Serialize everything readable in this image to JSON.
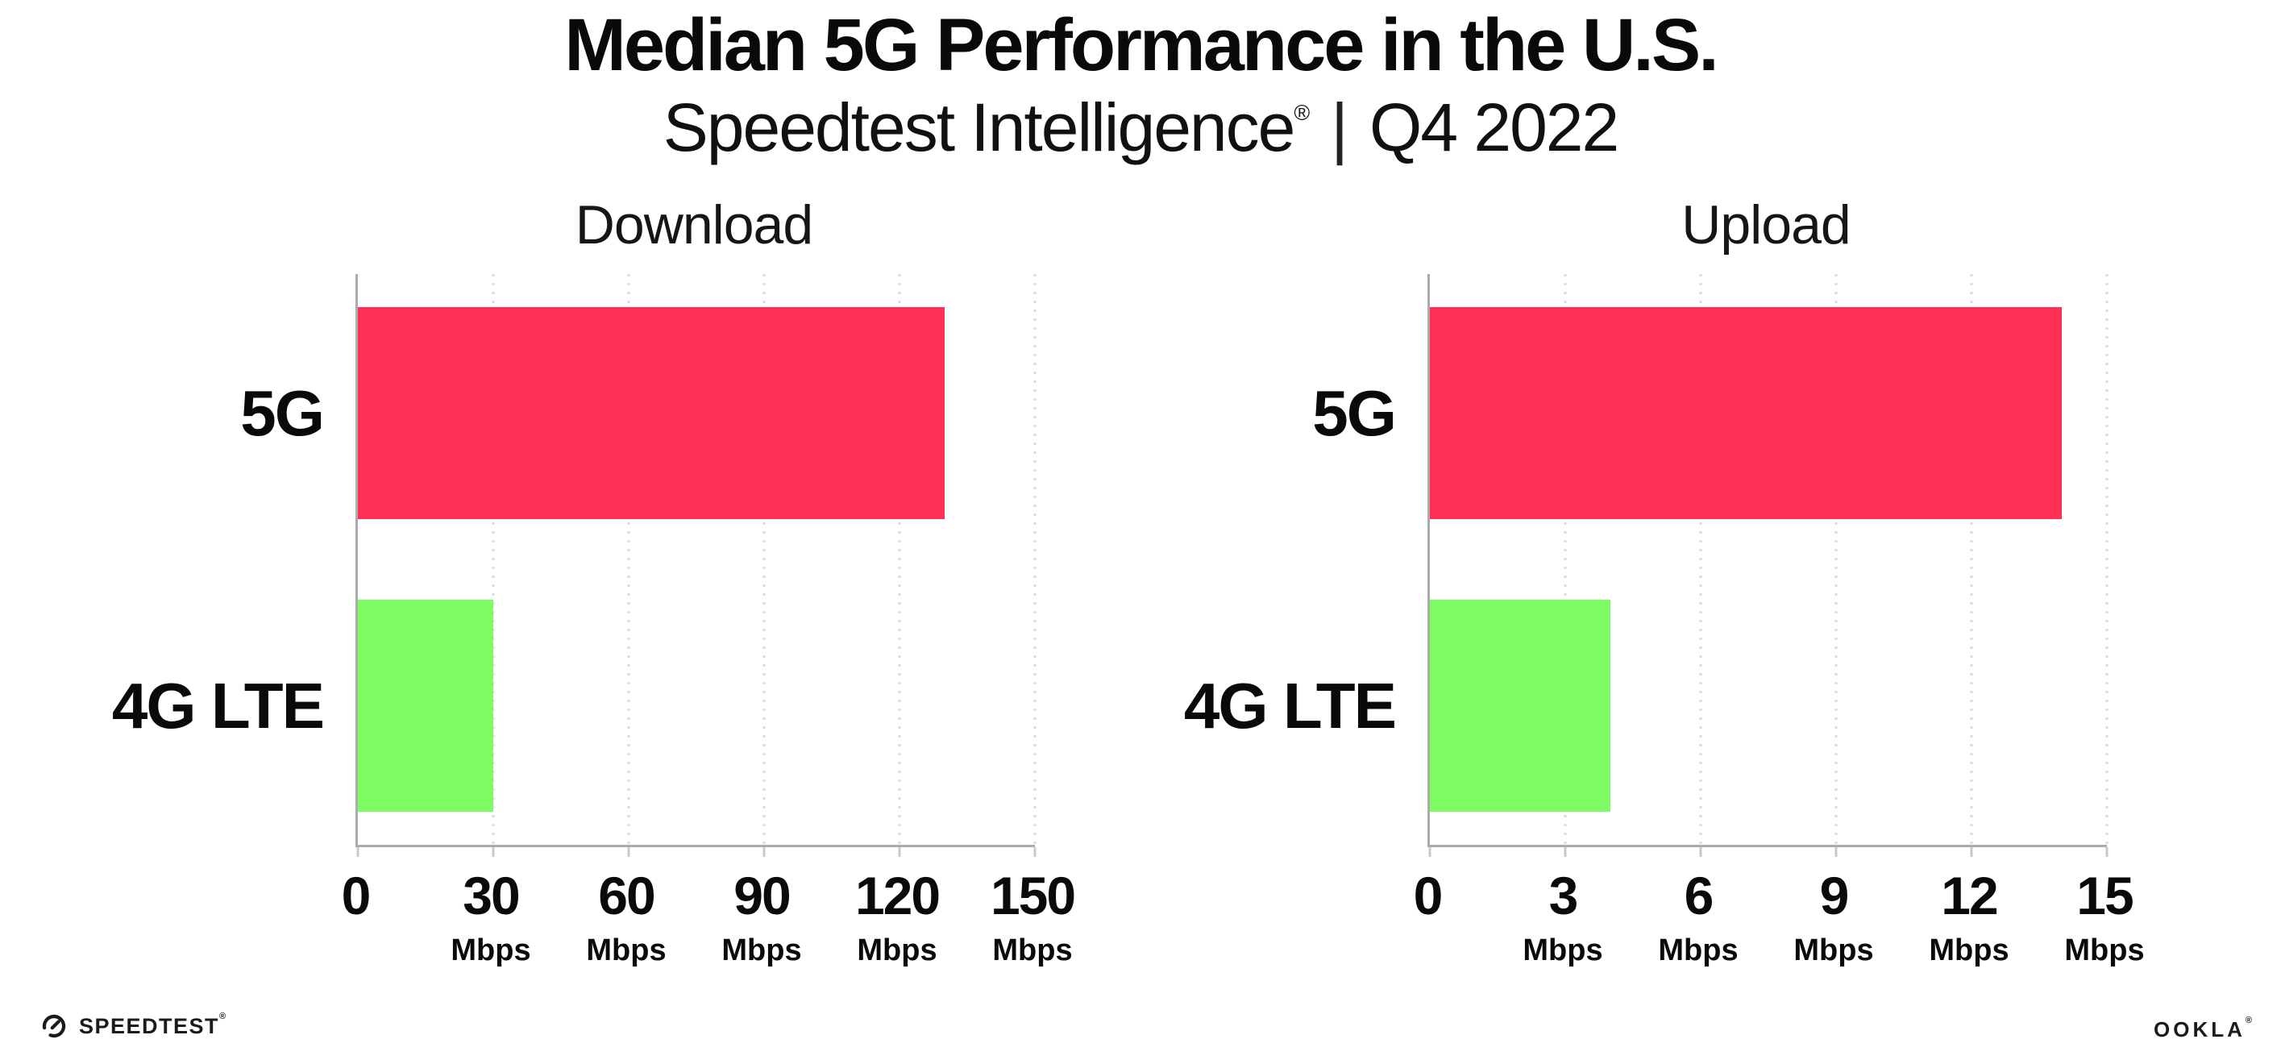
{
  "header": {
    "title": "Median 5G Performance in the U.S.",
    "subtitle_brand": "Speedtest Intelligence",
    "subtitle_reg": "®",
    "subtitle_sep": "|",
    "subtitle_period": "Q4 2022"
  },
  "colors": {
    "bar_5g": "#ff2f56",
    "bar_4g_lte": "#7dfc64",
    "axis": "#ababab",
    "gridline": "#dbdbdb",
    "text": "#0a0a0a"
  },
  "chart_data": [
    {
      "type": "bar",
      "orientation": "horizontal",
      "title": "Download",
      "categories": [
        "5G",
        "4G LTE"
      ],
      "values": [
        130,
        30
      ],
      "unit": "Mbps",
      "xlim": [
        0,
        150
      ],
      "xticks": [
        0,
        30,
        60,
        90,
        120,
        150
      ],
      "xtick_labels": [
        "0",
        "30",
        "60",
        "90",
        "120",
        "150"
      ],
      "colors": [
        "#ff2f56",
        "#7dfc64"
      ],
      "grid": "dotted vertical gridlines at each xtick",
      "legend": "none",
      "data_labels": "none"
    },
    {
      "type": "bar",
      "orientation": "horizontal",
      "title": "Upload",
      "categories": [
        "5G",
        "4G LTE"
      ],
      "values": [
        14,
        4
      ],
      "unit": "Mbps",
      "xlim": [
        0,
        15
      ],
      "xticks": [
        0,
        3,
        6,
        9,
        12,
        15
      ],
      "xtick_labels": [
        "0",
        "3",
        "6",
        "9",
        "12",
        "15"
      ],
      "colors": [
        "#ff2f56",
        "#7dfc64"
      ],
      "grid": "dotted vertical gridlines at each xtick",
      "legend": "none",
      "data_labels": "none"
    }
  ],
  "footer": {
    "speedtest_text": "SPEEDTEST",
    "speedtest_mark": "®",
    "ookla_text": "OOKLA",
    "ookla_mark": "®"
  }
}
